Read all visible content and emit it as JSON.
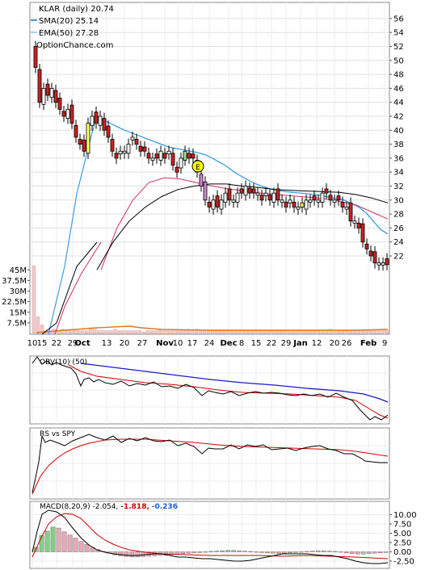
{
  "chart_data": [
    {
      "type": "candlestick",
      "panel": "price",
      "title": "KLAR (daily) 20.74",
      "watermark": "OptionChance.com",
      "legend": [
        {
          "label": "SMA(20) 25.14",
          "color": "#3c9ee6"
        },
        {
          "label": "EMA(50) 27.28",
          "color": "#a6d4f5"
        }
      ],
      "x_tick_labels": [
        "10",
        "15",
        "22",
        "29",
        "Oct",
        "13",
        "20",
        "27",
        "Nov",
        "10",
        "17",
        "24",
        "Dec",
        "8",
        "15",
        "22",
        "29",
        "Jan",
        "12",
        "20",
        "26",
        "Feb",
        "9"
      ],
      "y_ticks": [
        22,
        24,
        26,
        28,
        30,
        32,
        34,
        36,
        38,
        40,
        42,
        44,
        46,
        48,
        50,
        52,
        54,
        56
      ],
      "ylim": [
        20,
        57
      ],
      "close": [
        49,
        44,
        46,
        45,
        46,
        44,
        43,
        42,
        43,
        41,
        39,
        38,
        37,
        41,
        42,
        41,
        42,
        40,
        39,
        37,
        36,
        37,
        37,
        38,
        39,
        38,
        37,
        37,
        36,
        36,
        36,
        37,
        36,
        37,
        35,
        34,
        36,
        37,
        36,
        36,
        34,
        32,
        30,
        29,
        30,
        29,
        30,
        31,
        30,
        30,
        31,
        31,
        32,
        31,
        31,
        31,
        30,
        31,
        30,
        31,
        30,
        30,
        29,
        30,
        29,
        29,
        29,
        30,
        30,
        30,
        30,
        31,
        31,
        30,
        30,
        30,
        29,
        29,
        27,
        27,
        26,
        24,
        23,
        22,
        21,
        21,
        21,
        20.74
      ],
      "event_marker": "E",
      "moving_averages": {
        "sma20_blue": [
          42,
          41.5,
          41,
          40.5,
          40,
          39.6,
          39.2,
          38.8,
          38.4,
          38,
          37.6,
          37.4,
          37.2,
          37,
          36.8,
          36.5,
          36,
          35.4,
          34.8,
          34,
          33.4,
          32.8,
          32.3,
          31.9,
          31.6,
          31.4,
          31.2,
          31.1,
          31,
          30.9,
          30.8,
          30.6,
          30.4,
          30.2,
          30,
          29.5,
          29,
          28.2,
          27,
          25.8,
          25.14
        ],
        "sma_black": [
          20,
          24,
          27,
          29,
          30.5,
          31.5,
          32,
          32.3,
          32.3,
          32,
          31.8,
          31.5,
          31.4,
          31.3,
          31.2,
          31.1,
          30.8,
          30.3,
          29.6
        ],
        "ema50": [
          20,
          26,
          30,
          32.5,
          33.2,
          33,
          32.5,
          32,
          31.6,
          31.3,
          31,
          30.8,
          30.6,
          30.4,
          30.2,
          29.8,
          29.3,
          28.3,
          27.28
        ]
      }
    },
    {
      "type": "bar",
      "panel": "volume",
      "y_tick_labels": [
        "45M",
        "37.5M",
        "30M",
        "22.5M",
        "15M",
        "7.5M"
      ],
      "ylim": [
        0,
        52
      ],
      "values": [
        48,
        12,
        6,
        2,
        2,
        3,
        2,
        3,
        2,
        2,
        3,
        2,
        2,
        2,
        4,
        3,
        2,
        2,
        2,
        2,
        3,
        2,
        2,
        2,
        2,
        2,
        2,
        1,
        2,
        2,
        2,
        3,
        2,
        2,
        2,
        2,
        2,
        2,
        3,
        2,
        3,
        2,
        2,
        2,
        2,
        2,
        2,
        2,
        2,
        2,
        2,
        2,
        2,
        2,
        2,
        2,
        2,
        2,
        2,
        2,
        2,
        2,
        2,
        2,
        2,
        2,
        2,
        2,
        2,
        2,
        2,
        2,
        2,
        3,
        2,
        2,
        2,
        2,
        2,
        2,
        2,
        2,
        2,
        2,
        2,
        2,
        2,
        2
      ]
    },
    {
      "type": "line",
      "panel": "obv",
      "label": "OBV(10) (50)",
      "series": [
        {
          "name": "OBV(10)",
          "color": "#000000"
        },
        {
          "name": "(50)",
          "color": "#d40000"
        }
      ]
    },
    {
      "type": "line",
      "panel": "rs",
      "label": "RS vs SPY"
    },
    {
      "type": "bar",
      "panel": "macd",
      "label_prefix": "MACD(8,20,9) -2.054,",
      "label_red": "-1.818,",
      "label_blue": "-0.236",
      "y_tick_labels": [
        "10.00",
        "7.50",
        "5.00",
        "2.50",
        "0.00",
        "-2.50"
      ],
      "ylim": [
        -3.6,
        11.2
      ],
      "histogram": [
        1.2,
        4.4,
        5.6,
        6.7,
        6.4,
        5.4,
        4.5,
        3.7,
        2.8,
        2.0,
        1.2,
        0.6,
        0.1,
        -0.4,
        -0.8,
        -1.1,
        -1.3,
        -1.4,
        -1.4,
        -1.3,
        -1.2,
        -1.1,
        -1.0,
        -0.9,
        -0.8,
        -0.7,
        -0.5,
        -0.4,
        -0.3,
        -0.2,
        -0.1,
        0.1,
        0.2,
        0.3,
        0.4,
        0.4,
        0.3,
        0.2,
        0.1,
        -0.1,
        -0.2,
        -0.3,
        -0.4,
        -0.5,
        -0.4,
        -0.3,
        -0.2,
        -0.1,
        0.1,
        0.2,
        0.3,
        0.3,
        0.2,
        0.1,
        -0.1,
        -0.3,
        -0.5,
        -0.6,
        -0.6,
        -0.5,
        -0.4,
        -0.3,
        -0.2
      ]
    }
  ]
}
